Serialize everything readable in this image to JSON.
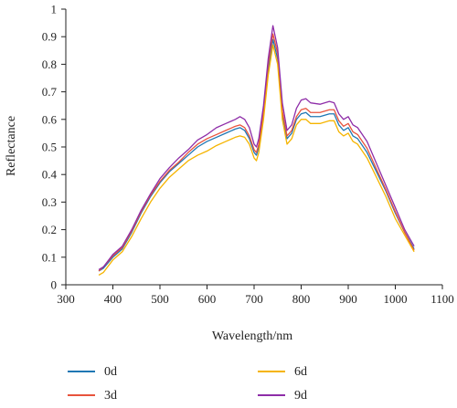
{
  "chart_data": {
    "type": "line",
    "xlabel": "Wavelength/nm",
    "ylabel": "Reflectance",
    "xlim": [
      300,
      1100
    ],
    "ylim": [
      0,
      1
    ],
    "xticks": [
      300,
      400,
      500,
      600,
      700,
      800,
      900,
      1000,
      1100
    ],
    "yticks": [
      0,
      0.1,
      0.2,
      0.3,
      0.4,
      0.5,
      0.6,
      0.7,
      0.8,
      0.9,
      1
    ],
    "ytick_labels": [
      "0",
      "0.1",
      "0.2",
      "0.3",
      "0.4",
      "0.5",
      "0.6",
      "0.7",
      "0.8",
      "0.9",
      "1"
    ],
    "grid": false,
    "legend_position": "bottom",
    "x": [
      370,
      380,
      400,
      420,
      440,
      460,
      480,
      500,
      520,
      540,
      560,
      580,
      600,
      620,
      640,
      660,
      670,
      680,
      690,
      700,
      705,
      710,
      720,
      730,
      740,
      750,
      760,
      770,
      780,
      790,
      800,
      810,
      820,
      840,
      860,
      870,
      880,
      890,
      900,
      910,
      920,
      940,
      960,
      980,
      1000,
      1020,
      1040
    ],
    "series": [
      {
        "name": "0d",
        "color": "#1f77b4",
        "values": [
          0.05,
          0.06,
          0.1,
          0.13,
          0.19,
          0.26,
          0.32,
          0.37,
          0.41,
          0.44,
          0.47,
          0.5,
          0.52,
          0.535,
          0.55,
          0.565,
          0.57,
          0.56,
          0.53,
          0.48,
          0.47,
          0.5,
          0.62,
          0.78,
          0.89,
          0.82,
          0.62,
          0.53,
          0.55,
          0.6,
          0.62,
          0.625,
          0.61,
          0.61,
          0.62,
          0.62,
          0.58,
          0.56,
          0.57,
          0.54,
          0.53,
          0.48,
          0.41,
          0.34,
          0.26,
          0.19,
          0.13
        ]
      },
      {
        "name": "3d",
        "color": "#e8533c",
        "values": [
          0.05,
          0.065,
          0.105,
          0.135,
          0.195,
          0.265,
          0.325,
          0.375,
          0.415,
          0.445,
          0.48,
          0.51,
          0.53,
          0.545,
          0.56,
          0.575,
          0.58,
          0.57,
          0.54,
          0.49,
          0.48,
          0.51,
          0.63,
          0.8,
          0.91,
          0.84,
          0.63,
          0.54,
          0.56,
          0.61,
          0.635,
          0.64,
          0.625,
          0.625,
          0.635,
          0.635,
          0.595,
          0.575,
          0.585,
          0.555,
          0.545,
          0.495,
          0.42,
          0.345,
          0.265,
          0.19,
          0.125
        ]
      },
      {
        "name": "6d",
        "color": "#f5b400",
        "values": [
          0.035,
          0.045,
          0.09,
          0.12,
          0.175,
          0.24,
          0.3,
          0.35,
          0.39,
          0.42,
          0.45,
          0.47,
          0.485,
          0.505,
          0.52,
          0.535,
          0.54,
          0.535,
          0.51,
          0.46,
          0.45,
          0.48,
          0.6,
          0.76,
          0.87,
          0.8,
          0.6,
          0.51,
          0.53,
          0.58,
          0.6,
          0.6,
          0.585,
          0.585,
          0.595,
          0.595,
          0.555,
          0.54,
          0.55,
          0.52,
          0.51,
          0.46,
          0.39,
          0.32,
          0.24,
          0.18,
          0.12
        ]
      },
      {
        "name": "9d",
        "color": "#8e2da8",
        "values": [
          0.055,
          0.065,
          0.11,
          0.14,
          0.2,
          0.27,
          0.33,
          0.385,
          0.425,
          0.46,
          0.49,
          0.525,
          0.545,
          0.57,
          0.585,
          0.6,
          0.61,
          0.6,
          0.57,
          0.51,
          0.5,
          0.53,
          0.65,
          0.82,
          0.94,
          0.86,
          0.66,
          0.56,
          0.58,
          0.64,
          0.67,
          0.675,
          0.66,
          0.655,
          0.665,
          0.66,
          0.62,
          0.6,
          0.61,
          0.58,
          0.57,
          0.52,
          0.44,
          0.36,
          0.28,
          0.2,
          0.14
        ]
      }
    ]
  }
}
